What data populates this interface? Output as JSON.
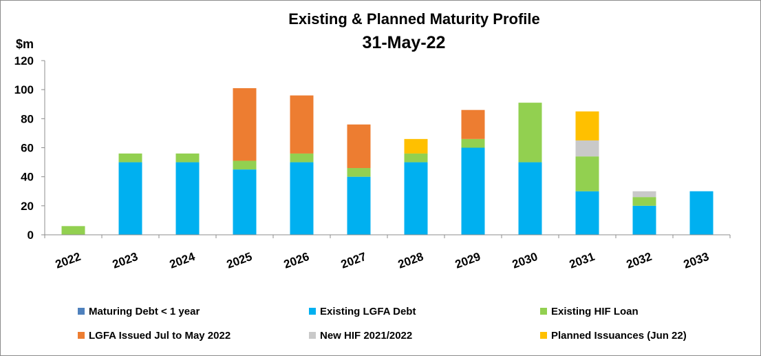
{
  "chart_data": {
    "type": "bar",
    "stacked": true,
    "title": "Existing & Planned  Maturity Profile",
    "subtitle": "31-May-22",
    "ylabel": "$m",
    "ylim": [
      0,
      120
    ],
    "yticks": [
      0,
      20,
      40,
      60,
      80,
      100,
      120
    ],
    "grid": false,
    "legend_position": "bottom",
    "categories": [
      "2022",
      "2023",
      "2024",
      "2025",
      "2026",
      "2027",
      "2028",
      "2029",
      "2030",
      "2031",
      "2032",
      "2033"
    ],
    "series": [
      {
        "name": "Maturing Debt < 1 year",
        "color": "#4f81bd",
        "values": [
          0,
          0,
          0,
          0,
          0,
          0,
          0,
          0,
          0,
          0,
          0,
          0
        ]
      },
      {
        "name": "Existing LGFA Debt",
        "color": "#00b0f0",
        "values": [
          0,
          50,
          50,
          45,
          50,
          40,
          50,
          60,
          50,
          30,
          20,
          30
        ]
      },
      {
        "name": "Existing HIF Loan",
        "color": "#92d050",
        "values": [
          6,
          6,
          6,
          6,
          6,
          6,
          6,
          6,
          41,
          24,
          6,
          0
        ]
      },
      {
        "name": "LGFA Issued Jul to May 2022",
        "color": "#ed7d31",
        "values": [
          0,
          0,
          0,
          50,
          40,
          30,
          0,
          20,
          0,
          0,
          0,
          0
        ]
      },
      {
        "name": "New HIF 2021/2022",
        "color": "#c9c9c9",
        "values": [
          0,
          0,
          0,
          0,
          0,
          0,
          0,
          0,
          0,
          11,
          4,
          0
        ]
      },
      {
        "name": "Planned Issuances (Jun 22)",
        "color": "#ffc000",
        "values": [
          0,
          0,
          0,
          0,
          0,
          0,
          10,
          0,
          0,
          20,
          0,
          0
        ]
      }
    ]
  }
}
